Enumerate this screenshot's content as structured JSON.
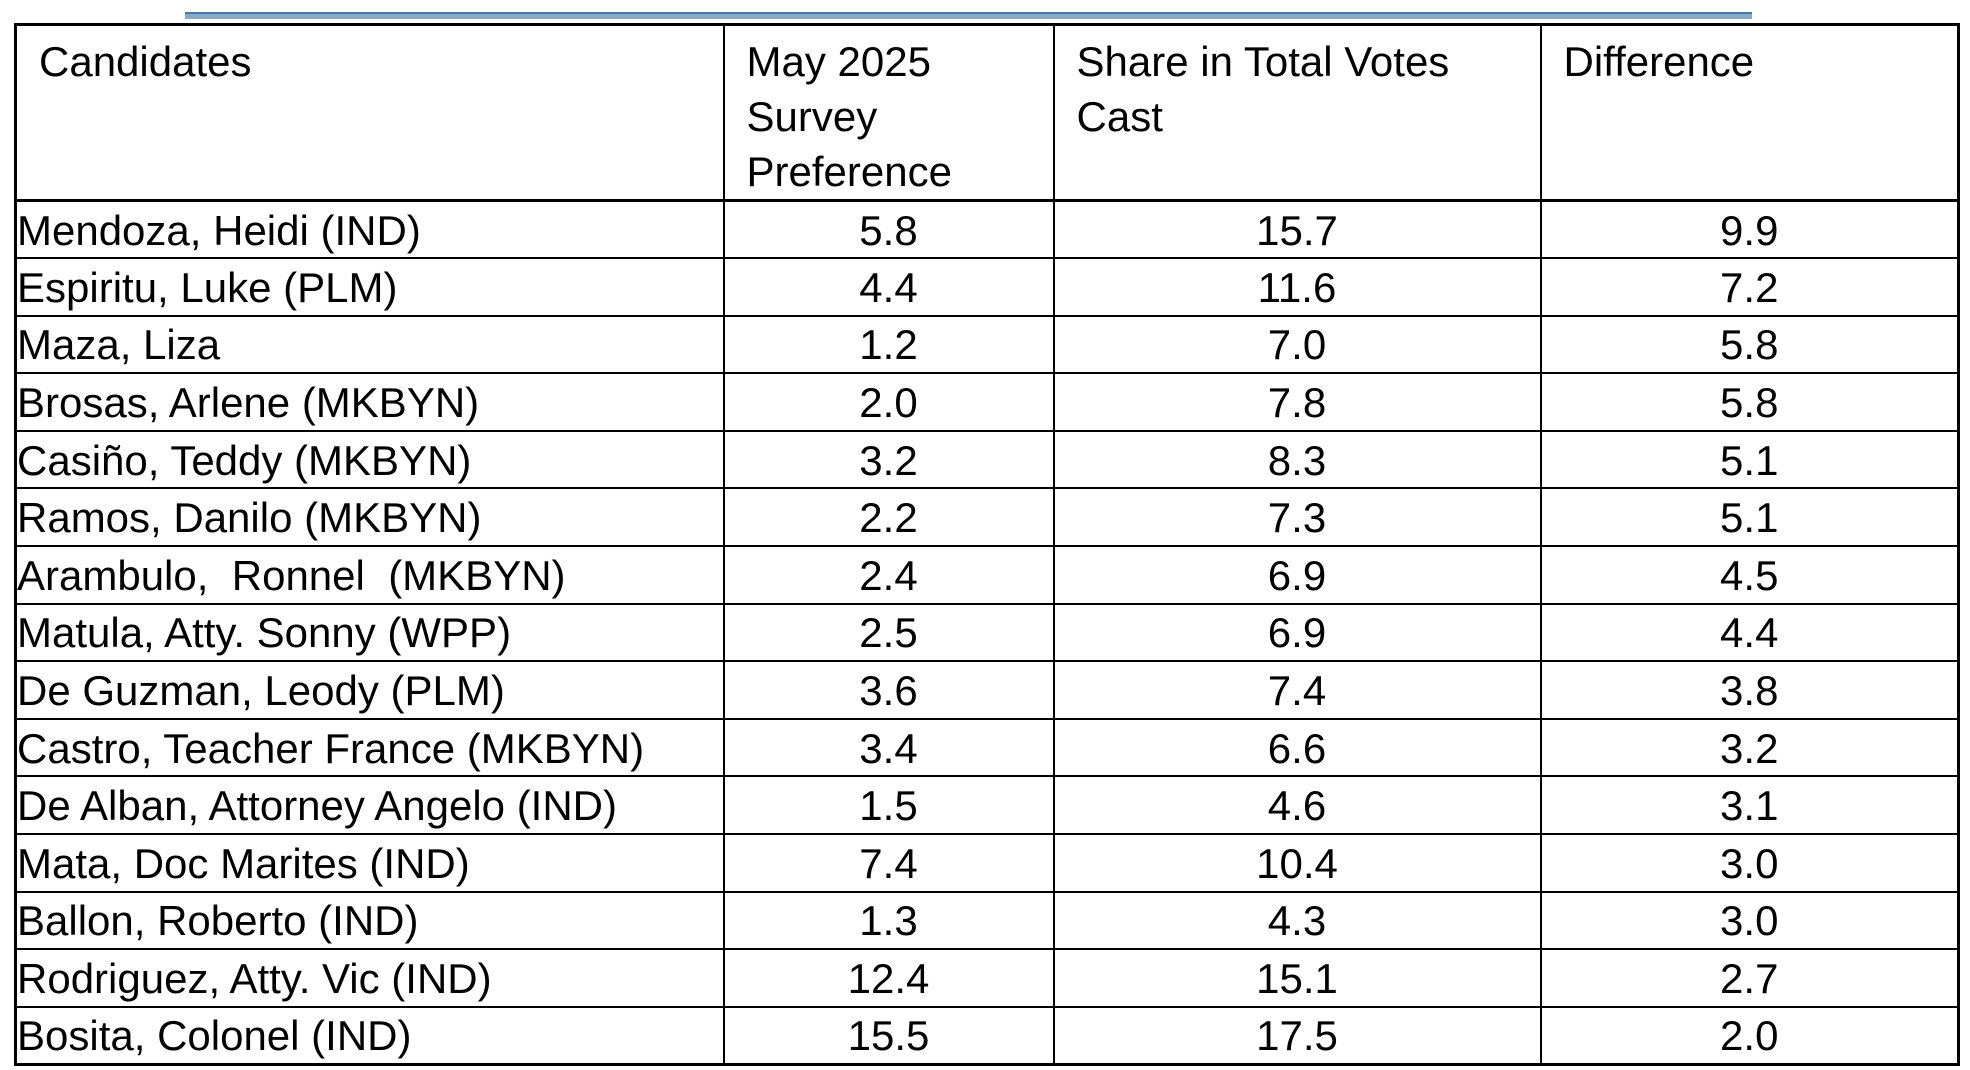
{
  "decorations": {
    "accent_line_fill": "#84a7cc",
    "accent_line_edge": "#4a76a8"
  },
  "table": {
    "columns": [
      {
        "key": "candidate",
        "label": "Candidates",
        "align": "left"
      },
      {
        "key": "survey",
        "label": "May 2025\nSurvey\nPreference",
        "align": "center"
      },
      {
        "key": "share",
        "label": "Share in Total Votes\nCast",
        "align": "center"
      },
      {
        "key": "diff",
        "label": "Difference",
        "align": "center"
      }
    ],
    "rows": [
      {
        "candidate": "Mendoza, Heidi (IND)",
        "survey": "5.8",
        "share": "15.7",
        "diff": "9.9"
      },
      {
        "candidate": "Espiritu, Luke (PLM)",
        "survey": "4.4",
        "share": "11.6",
        "diff": "7.2"
      },
      {
        "candidate": "Maza, Liza",
        "survey": "1.2",
        "share": "7.0",
        "diff": "5.8"
      },
      {
        "candidate": "Brosas, Arlene (MKBYN)",
        "survey": "2.0",
        "share": "7.8",
        "diff": "5.8"
      },
      {
        "candidate": "Casiño, Teddy (MKBYN)",
        "survey": "3.2",
        "share": "8.3",
        "diff": "5.1"
      },
      {
        "candidate": "Ramos, Danilo (MKBYN)",
        "survey": "2.2",
        "share": "7.3",
        "diff": "5.1"
      },
      {
        "candidate": "Arambulo,  Ronnel  (MKBYN)",
        "survey": "2.4",
        "share": "6.9",
        "diff": "4.5"
      },
      {
        "candidate": "Matula, Atty. Sonny (WPP)",
        "survey": "2.5",
        "share": "6.9",
        "diff": "4.4"
      },
      {
        "candidate": "De Guzman, Leody (PLM)",
        "survey": "3.6",
        "share": "7.4",
        "diff": "3.8"
      },
      {
        "candidate": "Castro, Teacher France (MKBYN)",
        "survey": "3.4",
        "share": "6.6",
        "diff": "3.2"
      },
      {
        "candidate": "De Alban, Attorney Angelo (IND)",
        "survey": "1.5",
        "share": "4.6",
        "diff": "3.1"
      },
      {
        "candidate": "Mata, Doc Marites (IND)",
        "survey": "7.4",
        "share": "10.4",
        "diff": "3.0"
      },
      {
        "candidate": "Ballon, Roberto (IND)",
        "survey": "1.3",
        "share": "4.3",
        "diff": "3.0"
      },
      {
        "candidate": "Rodriguez, Atty. Vic (IND)",
        "survey": "12.4",
        "share": "15.1",
        "diff": "2.7"
      },
      {
        "candidate": "Bosita, Colonel (IND)",
        "survey": "15.5",
        "share": "17.5",
        "diff": "2.0"
      }
    ]
  }
}
